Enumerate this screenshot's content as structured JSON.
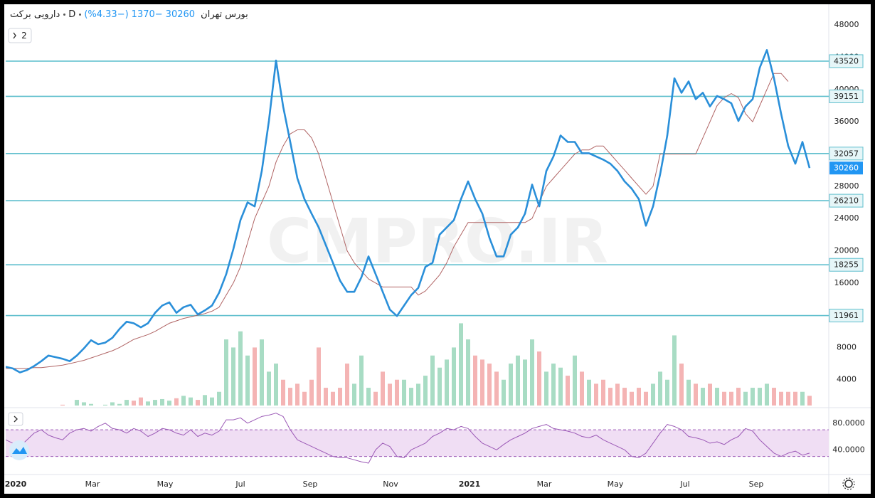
{
  "header": {
    "symbol": "دارویی برکت",
    "interval": "D",
    "exchange": "بورس تهران",
    "change": "−1370",
    "change_pct": "(−4.33%)",
    "scale_button": "2",
    "watermark": "CMPRO.IR"
  },
  "chart_data": [
    {
      "type": "line",
      "pane": "price",
      "last_price": 30260,
      "last_color": "#2196f3",
      "x": [
        0,
        1,
        2,
        3,
        4,
        5,
        6,
        7,
        8,
        9,
        10,
        11,
        12,
        13,
        14,
        15,
        16,
        17,
        18,
        19,
        20,
        21,
        22,
        23,
        24,
        25,
        26,
        27,
        28,
        29,
        30,
        31,
        32,
        33,
        34,
        35,
        36,
        37,
        38,
        39,
        40,
        41,
        42,
        43,
        44,
        45,
        46,
        47,
        48,
        49,
        50,
        51,
        52,
        53,
        54,
        55,
        56,
        57,
        58,
        59,
        60,
        61,
        62,
        63,
        64,
        65,
        66,
        67,
        68,
        69,
        70,
        71,
        72,
        73,
        74,
        75,
        76,
        77,
        78,
        79,
        80,
        81,
        82,
        83,
        84,
        85,
        86,
        87,
        88,
        89,
        90,
        91,
        92,
        93,
        94,
        95,
        96,
        97,
        98,
        99,
        100,
        101,
        102,
        103,
        104,
        105,
        106,
        107,
        108,
        109,
        110,
        111,
        112,
        113
      ],
      "xlim": [
        0,
        115.7
      ],
      "xticks": [
        {
          "value": 1.4,
          "label": "2020"
        },
        {
          "value": 12.2,
          "label": "Mar"
        },
        {
          "value": 22.4,
          "label": "May"
        },
        {
          "value": 33,
          "label": "Jul"
        },
        {
          "value": 42.8,
          "label": "Sep"
        },
        {
          "value": 54.1,
          "label": "Nov"
        },
        {
          "value": 65.2,
          "label": "2021"
        },
        {
          "value": 75.7,
          "label": "Mar"
        },
        {
          "value": 85.7,
          "label": "May"
        },
        {
          "value": 95.5,
          "label": "Jul"
        },
        {
          "value": 105.5,
          "label": "Sep"
        }
      ],
      "ylim": [
        800,
        50400
      ],
      "yticks": [
        12000,
        16000,
        20000,
        24000,
        28000,
        32000,
        36000,
        40000,
        44000,
        48000
      ],
      "grid": false,
      "levels": [
        43520,
        39151,
        32057,
        26210,
        18255,
        11961
      ],
      "level_color": "#5fbfcd",
      "series": [
        {
          "name": "price",
          "color": "#2a8fd9",
          "width": 2.6,
          "values": [
            5600,
            5400,
            4900,
            5200,
            5700,
            6300,
            7000,
            6800,
            6600,
            6300,
            7000,
            7900,
            8900,
            8400,
            8600,
            9200,
            10300,
            11200,
            11000,
            10500,
            11000,
            12300,
            13200,
            13600,
            12300,
            13000,
            13300,
            12100,
            12600,
            13200,
            14800,
            17100,
            20200,
            23800,
            26000,
            25500,
            29900,
            36100,
            43600,
            37900,
            33500,
            29000,
            26400,
            24600,
            22900,
            20700,
            18500,
            16300,
            14900,
            14900,
            16700,
            19300,
            17100,
            14900,
            12700,
            11900,
            13200,
            14500,
            15400,
            18000,
            18500,
            22000,
            22900,
            23800,
            26400,
            28600,
            26400,
            24600,
            21600,
            19300,
            19300,
            22000,
            22900,
            24600,
            28200,
            25500,
            29900,
            31700,
            34300,
            33500,
            33500,
            32100,
            32100,
            31700,
            31300,
            30800,
            29900,
            28600,
            27700,
            26400,
            23100,
            25500,
            29500,
            34300,
            41400,
            39600,
            41000,
            38800,
            39600,
            37900,
            39200,
            38800,
            38300,
            36100,
            37900,
            38800,
            42700,
            44900,
            41400,
            37000,
            33000,
            30800,
            33500,
            30260
          ]
        },
        {
          "name": "base",
          "color": "#b06464",
          "width": 1,
          "values": [
            5400,
            5400,
            5400,
            5400,
            5500,
            5500,
            5600,
            5700,
            5800,
            6000,
            6200,
            6400,
            6700,
            7000,
            7300,
            7600,
            8000,
            8500,
            9000,
            9300,
            9600,
            10000,
            10500,
            11000,
            11300,
            11600,
            11800,
            12000,
            12200,
            12500,
            13000,
            14500,
            16000,
            18000,
            21000,
            24000,
            26000,
            28000,
            31000,
            33000,
            34500,
            35000,
            35000,
            34000,
            32000,
            29000,
            26000,
            23000,
            20000,
            18500,
            17500,
            16500,
            16000,
            15500,
            15500,
            15500,
            15500,
            15500,
            14500,
            15000,
            16000,
            17000,
            18500,
            20500,
            22000,
            23500,
            23500,
            23500,
            23500,
            23500,
            23500,
            23500,
            23500,
            23500,
            24000,
            26000,
            28000,
            29000,
            30000,
            31000,
            32000,
            32500,
            32500,
            33000,
            33000,
            32000,
            31000,
            30000,
            29000,
            28000,
            27000,
            28000,
            32000,
            32000,
            32000,
            32000,
            32000,
            32000,
            34000,
            36000,
            38000,
            39000,
            39500,
            39000,
            37000,
            36000,
            38000,
            40000,
            42000,
            42000,
            41000,
            null,
            null,
            null
          ]
        }
      ]
    },
    {
      "type": "bar",
      "pane": "price",
      "up_color": "#a8dcc4",
      "down_color": "#f4b4b4",
      "ylim": [
        800,
        50400
      ],
      "yticks": [
        4000,
        8000
      ],
      "values": [
        300,
        400,
        500,
        400,
        600,
        800,
        500,
        700,
        900,
        600,
        1500,
        1200,
        1000,
        800,
        900,
        1200,
        1000,
        1500,
        1400,
        1800,
        1300,
        1500,
        1600,
        1400,
        1700,
        2000,
        1800,
        1500,
        2100,
        1800,
        2500,
        9000,
        8000,
        10000,
        7000,
        8000,
        9000,
        5000,
        6000,
        4000,
        3000,
        3500,
        2500,
        4000,
        8000,
        3000,
        2500,
        3000,
        6000,
        3500,
        7000,
        3000,
        2500,
        5000,
        3500,
        4000,
        4000,
        3000,
        3500,
        4500,
        7000,
        5500,
        6500,
        8000,
        11000,
        9000,
        7000,
        6500,
        6000,
        5000,
        4000,
        6000,
        7000,
        6500,
        9000,
        7500,
        5000,
        6000,
        5500,
        4500,
        7000,
        5000,
        4000,
        3500,
        4000,
        3000,
        3500,
        3000,
        2500,
        3000,
        2500,
        3500,
        5000,
        4000,
        9500,
        6000,
        4000,
        3500,
        3000,
        3500,
        3000,
        2500,
        2500,
        3000,
        2500,
        3000,
        3000,
        3500,
        3000,
        2500,
        2500,
        2500,
        2500,
        2000
      ]
    },
    {
      "type": "line",
      "pane": "rsi",
      "color": "#9b59b6",
      "band_color": "#f0def4",
      "ylim": [
        4,
        100
      ],
      "bands": [
        30,
        70
      ],
      "yticks": [
        {
          "value": 40,
          "label": "40.0000"
        },
        {
          "value": 80,
          "label": "80.0000"
        }
      ],
      "values": [
        55,
        50,
        45,
        55,
        65,
        70,
        62,
        58,
        55,
        65,
        70,
        72,
        68,
        75,
        80,
        72,
        70,
        65,
        72,
        68,
        60,
        65,
        72,
        70,
        65,
        62,
        70,
        60,
        65,
        62,
        68,
        85,
        85,
        88,
        80,
        85,
        90,
        92,
        95,
        90,
        70,
        55,
        50,
        45,
        40,
        35,
        30,
        28,
        28,
        25,
        22,
        20,
        40,
        50,
        45,
        30,
        28,
        40,
        45,
        50,
        60,
        65,
        72,
        70,
        75,
        72,
        60,
        50,
        45,
        40,
        48,
        55,
        60,
        65,
        72,
        75,
        78,
        72,
        70,
        68,
        65,
        60,
        58,
        62,
        55,
        50,
        45,
        40,
        30,
        28,
        35,
        50,
        65,
        78,
        75,
        70,
        60,
        58,
        55,
        50,
        52,
        48,
        55,
        60,
        72,
        68,
        55,
        45,
        35,
        30,
        35,
        38,
        32,
        35
      ]
    }
  ]
}
